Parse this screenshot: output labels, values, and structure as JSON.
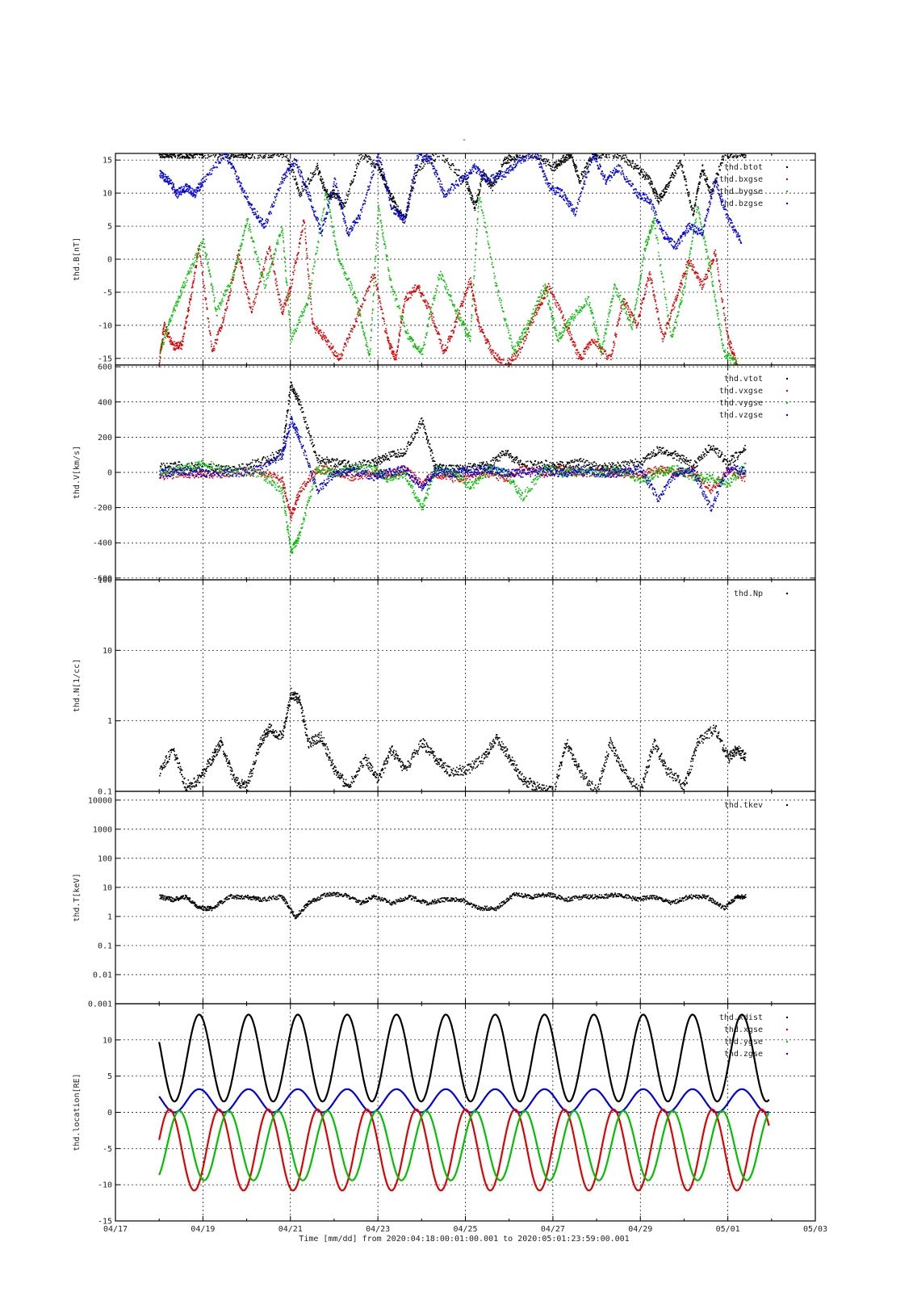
{
  "title": "-",
  "time_label": "Time [mm/dd]  from 2020:04:18:00:01:00.001  to  2020:05:01:23:59:00.001",
  "x_ticks": [
    "04/17",
    "04/19",
    "04/21",
    "04/23",
    "04/25",
    "04/27",
    "04/29",
    "05/01",
    "05/03"
  ],
  "colors": {
    "black": "#000000",
    "red": "#e00000",
    "green": "#00c000",
    "blue": "#0000e0"
  },
  "chart_data": [
    {
      "type": "scatter",
      "ylabel": "thd.B[nT]",
      "ylim": [
        -16,
        16
      ],
      "y_ticks": [
        "15",
        "10",
        "5",
        "0",
        "-5",
        "-10",
        "-15"
      ],
      "legend": [
        "thd.btot",
        "thd.bxgse",
        "thd.bygse",
        "thd.bzgse"
      ],
      "legend_placement": "top-right",
      "grid": true,
      "series": [
        {
          "name": "thd.btot",
          "color": "black",
          "x": [
            18.0,
            18.2,
            18.4,
            18.6,
            18.8,
            19.0,
            19.6,
            19.8,
            20.0,
            20.4,
            20.9,
            21.2,
            21.6,
            21.8,
            22.0,
            22.2,
            22.6,
            23.0,
            23.2,
            23.4,
            23.6,
            23.9,
            24.4,
            25.0,
            25.2,
            25.4,
            25.6,
            25.9,
            26.2,
            26.6,
            27.0,
            27.2,
            27.4,
            27.6,
            27.9,
            28.2,
            28.5,
            28.9,
            29.2,
            29.4,
            29.6,
            29.9,
            30.2,
            30.4,
            30.6,
            30.9,
            31.2,
            31.4
          ],
          "y": [
            16,
            16,
            16,
            16,
            16,
            16,
            16,
            16,
            16,
            16,
            16,
            10,
            14,
            10,
            10,
            8,
            16,
            14,
            11,
            8,
            6,
            14,
            16,
            12,
            8,
            13,
            11,
            15,
            16,
            16,
            14,
            15,
            16,
            12,
            16,
            16,
            16,
            14,
            12,
            9,
            11,
            15,
            7,
            14,
            10,
            16,
            16,
            16
          ]
        },
        {
          "name": "thd.bxgse",
          "color": "red",
          "x": [
            18.0,
            18.1,
            18.3,
            18.5,
            18.7,
            18.9,
            19.2,
            19.5,
            19.8,
            20.1,
            20.5,
            20.8,
            21.0,
            21.3,
            21.5,
            21.8,
            22.1,
            22.5,
            22.9,
            23.2,
            23.4,
            23.6,
            23.9,
            24.2,
            24.5,
            24.8,
            25.1,
            25.3,
            25.6,
            25.9,
            26.2,
            26.6,
            26.9,
            27.3,
            27.6,
            27.9,
            28.3,
            28.6,
            28.9,
            29.2,
            29.5,
            29.8,
            30.1,
            30.4,
            30.7,
            31.0,
            31.2
          ],
          "y": [
            -15,
            -10,
            -13,
            -13,
            -6,
            2,
            -14,
            -8,
            1,
            -8,
            2,
            -8,
            -4,
            6,
            -10,
            -12,
            -15,
            -9,
            -2,
            -12,
            -15,
            -6,
            -4,
            -8,
            -14,
            -9,
            -3,
            -10,
            -14,
            -16,
            -14,
            -8,
            -4,
            -10,
            -15,
            -12,
            -15,
            -6,
            -10,
            -2,
            -12,
            -6,
            0,
            -4,
            1,
            -12,
            -16
          ]
        },
        {
          "name": "thd.bygse",
          "color": "green",
          "x": [
            18.0,
            18.3,
            18.6,
            19.0,
            19.3,
            19.7,
            20.0,
            20.4,
            20.8,
            21.0,
            21.4,
            21.8,
            22.1,
            22.5,
            22.8,
            23.0,
            23.3,
            23.7,
            24.0,
            24.4,
            24.8,
            25.1,
            25.3,
            25.7,
            26.1,
            26.4,
            26.8,
            27.1,
            27.4,
            27.8,
            28.1,
            28.4,
            28.8,
            29.1,
            29.3,
            29.7,
            30.0,
            30.3,
            30.6,
            30.9,
            31.2
          ],
          "y": [
            -14,
            -8,
            -3,
            3,
            -8,
            -2,
            6,
            -4,
            5,
            -12,
            -6,
            10,
            0,
            -6,
            -15,
            8,
            -4,
            -12,
            -14,
            -2,
            -8,
            -12,
            10,
            -4,
            -14,
            -10,
            -4,
            -12,
            -9,
            -6,
            -14,
            -4,
            -10,
            2,
            6,
            -12,
            -4,
            8,
            -2,
            -14,
            -16
          ]
        },
        {
          "name": "thd.bzgse",
          "color": "blue",
          "x": [
            18.0,
            18.2,
            18.4,
            18.6,
            18.8,
            19.0,
            19.5,
            19.8,
            20.1,
            20.4,
            20.8,
            21.1,
            21.4,
            21.7,
            22.0,
            22.3,
            22.6,
            23.0,
            23.3,
            23.6,
            23.9,
            24.2,
            24.5,
            24.9,
            25.2,
            25.5,
            25.9,
            26.2,
            26.6,
            26.9,
            27.2,
            27.5,
            27.9,
            28.2,
            28.5,
            28.9,
            29.2,
            29.5,
            29.8,
            30.1,
            30.4,
            30.7,
            31.0,
            31.3
          ],
          "y": [
            13,
            12,
            10,
            11,
            10,
            12,
            16,
            12,
            8,
            5,
            12,
            15,
            10,
            4,
            12,
            4,
            7,
            16,
            8,
            6,
            16,
            15,
            10,
            12,
            14,
            12,
            13,
            15,
            16,
            11,
            10,
            7,
            16,
            12,
            14,
            10,
            9,
            4,
            2,
            5,
            4,
            12,
            6,
            3
          ]
        }
      ]
    },
    {
      "type": "scatter",
      "ylabel": "thd.V[km/s]",
      "ylim": [
        -610,
        610
      ],
      "y_ticks": [
        "600",
        "400",
        "200",
        "0",
        "-200",
        "-400",
        "-600"
      ],
      "legend": [
        "thd.vtot",
        "thd.vxgse",
        "thd.vygse",
        "thd.vzgse"
      ],
      "legend_placement": "top-right",
      "grid": true,
      "series": [
        {
          "name": "thd.vtot",
          "color": "black",
          "x": [
            18.0,
            18.5,
            19.0,
            19.6,
            20.3,
            20.8,
            21.0,
            21.2,
            21.6,
            22.0,
            22.4,
            22.9,
            23.2,
            23.6,
            24.0,
            24.3,
            24.7,
            25.1,
            25.5,
            25.9,
            26.3,
            26.8,
            27.2,
            27.6,
            28.1,
            28.5,
            29.0,
            29.4,
            29.8,
            30.2,
            30.6,
            31.0,
            31.4
          ],
          "y": [
            30,
            40,
            30,
            20,
            60,
            120,
            500,
            400,
            80,
            60,
            40,
            60,
            90,
            120,
            300,
            30,
            20,
            30,
            40,
            120,
            40,
            50,
            40,
            60,
            30,
            40,
            60,
            130,
            100,
            40,
            150,
            60,
            140
          ]
        },
        {
          "name": "thd.vxgse",
          "color": "red",
          "x": [
            18.0,
            18.5,
            19.0,
            19.6,
            20.3,
            20.8,
            21.0,
            21.2,
            21.6,
            22.0,
            22.4,
            22.9,
            23.2,
            23.6,
            24.0,
            24.3,
            24.7,
            25.1,
            25.5,
            25.9,
            26.3,
            26.8,
            27.2,
            27.6,
            28.1,
            28.5,
            29.0,
            29.4,
            29.8,
            30.2,
            30.6,
            31.0,
            31.4
          ],
          "y": [
            -20,
            0,
            -10,
            0,
            10,
            -40,
            -250,
            -100,
            20,
            10,
            -20,
            0,
            -10,
            20,
            -60,
            0,
            -30,
            -20,
            0,
            -30,
            20,
            0,
            20,
            0,
            10,
            0,
            -10,
            20,
            0,
            10,
            -100,
            20,
            -30
          ]
        },
        {
          "name": "thd.vygse",
          "color": "green",
          "x": [
            18.0,
            18.5,
            19.0,
            19.6,
            20.3,
            20.8,
            21.0,
            21.2,
            21.6,
            22.0,
            22.4,
            22.9,
            23.2,
            23.6,
            24.0,
            24.3,
            24.7,
            25.1,
            25.5,
            25.9,
            26.3,
            26.8,
            27.2,
            27.6,
            28.1,
            28.5,
            29.0,
            29.4,
            29.8,
            30.2,
            30.6,
            31.0,
            31.4
          ],
          "y": [
            0,
            20,
            60,
            10,
            0,
            -100,
            -450,
            -350,
            20,
            0,
            30,
            20,
            -30,
            0,
            -200,
            20,
            0,
            -80,
            20,
            0,
            -140,
            30,
            0,
            10,
            0,
            20,
            -40,
            0,
            20,
            -20,
            -30,
            -60,
            40
          ]
        },
        {
          "name": "thd.vzgse",
          "color": "blue",
          "x": [
            18.0,
            18.5,
            19.0,
            19.6,
            20.3,
            20.8,
            21.0,
            21.2,
            21.6,
            22.0,
            22.4,
            22.9,
            23.2,
            23.6,
            24.0,
            24.3,
            24.7,
            25.1,
            25.5,
            25.9,
            26.3,
            26.8,
            27.2,
            27.6,
            28.1,
            28.5,
            29.0,
            29.4,
            29.8,
            30.2,
            30.6,
            31.0,
            31.4
          ],
          "y": [
            0,
            10,
            0,
            0,
            20,
            100,
            300,
            200,
            -100,
            0,
            10,
            -20,
            0,
            20,
            -80,
            10,
            0,
            10,
            20,
            0,
            0,
            10,
            0,
            10,
            0,
            0,
            20,
            -150,
            0,
            10,
            -200,
            30,
            10
          ]
        }
      ]
    },
    {
      "type": "scatter",
      "ylabel": "thd.N[1/cc]",
      "log_scale": true,
      "ylim": [
        0.1,
        100
      ],
      "y_ticks": [
        "100",
        "10",
        "1",
        "0.1"
      ],
      "legend": [
        "thd.Np"
      ],
      "legend_placement": "top-right",
      "grid": true,
      "series": [
        {
          "name": "thd.Np",
          "color": "black",
          "x": [
            18.0,
            18.3,
            18.6,
            18.9,
            19.2,
            19.4,
            19.7,
            20.0,
            20.3,
            20.5,
            20.8,
            21.0,
            21.2,
            21.4,
            21.7,
            22.0,
            22.3,
            22.7,
            23.0,
            23.3,
            23.6,
            24.0,
            24.3,
            24.6,
            25.0,
            25.4,
            25.7,
            26.0,
            26.3,
            26.6,
            27.0,
            27.3,
            27.6,
            28.0,
            28.3,
            28.6,
            29.0,
            29.3,
            29.6,
            30.0,
            30.3,
            30.7,
            31.0,
            31.2,
            31.4
          ],
          "y": [
            0.2,
            0.4,
            0.12,
            0.15,
            0.3,
            0.5,
            0.15,
            0.12,
            0.5,
            0.8,
            0.6,
            2.5,
            2.0,
            0.5,
            0.6,
            0.2,
            0.12,
            0.3,
            0.15,
            0.4,
            0.2,
            0.5,
            0.3,
            0.2,
            0.2,
            0.3,
            0.6,
            0.3,
            0.15,
            0.12,
            0.1,
            0.5,
            0.2,
            0.1,
            0.5,
            0.2,
            0.1,
            0.5,
            0.2,
            0.12,
            0.5,
            0.8,
            0.3,
            0.4,
            0.3
          ]
        }
      ]
    },
    {
      "type": "scatter",
      "ylabel": "thd.T[keV]",
      "log_scale": true,
      "ylim": [
        0.001,
        20000
      ],
      "y_ticks": [
        "10000",
        "1000",
        "100",
        "10",
        "1",
        "0.1",
        "0.01",
        "0.001"
      ],
      "legend": [
        "thd.tkev"
      ],
      "legend_placement": "top-right",
      "grid": true,
      "series": [
        {
          "name": "thd.tkev",
          "color": "black",
          "x": [
            18.0,
            18.3,
            18.6,
            18.9,
            19.2,
            19.6,
            20.0,
            20.3,
            20.8,
            21.1,
            21.4,
            21.8,
            22.2,
            22.6,
            22.9,
            23.3,
            23.7,
            24.1,
            24.5,
            24.9,
            25.3,
            25.7,
            26.1,
            26.5,
            26.9,
            27.3,
            27.7,
            28.1,
            28.5,
            28.9,
            29.3,
            29.7,
            30.1,
            30.5,
            30.9,
            31.2,
            31.4
          ],
          "y": [
            5,
            4,
            5,
            2,
            2,
            5,
            5,
            4,
            5,
            1,
            3,
            6,
            6,
            3,
            5,
            3,
            5,
            3,
            4,
            4,
            2,
            2,
            6,
            5,
            6,
            4,
            5,
            5,
            6,
            4,
            5,
            3,
            5,
            5,
            2,
            5,
            5
          ]
        }
      ]
    },
    {
      "type": "line",
      "ylabel": "thd.location[RE]",
      "ylim": [
        -15,
        15
      ],
      "y_ticks": [
        "10",
        "5",
        "0",
        "-5",
        "-10",
        "-15"
      ],
      "legend": [
        "thd.xdist",
        "thd.xgse",
        "thd.ygse",
        "thd.zgse"
      ],
      "legend_placement": "top-right",
      "grid": true,
      "orbit_period_days": 1.128,
      "series": [
        {
          "name": "thd.xdist",
          "color": "black",
          "description": "range 1.5..13.5 RE, apogee near each grid day"
        },
        {
          "name": "thd.xgse",
          "color": "red",
          "amplitude_min": -11,
          "amplitude_max": 0
        },
        {
          "name": "thd.ygse",
          "color": "green",
          "amplitude_min": -9,
          "amplitude_max": 0
        },
        {
          "name": "thd.zgse",
          "color": "blue",
          "amplitude_min": 0,
          "amplitude_max": 3.2
        }
      ]
    }
  ]
}
